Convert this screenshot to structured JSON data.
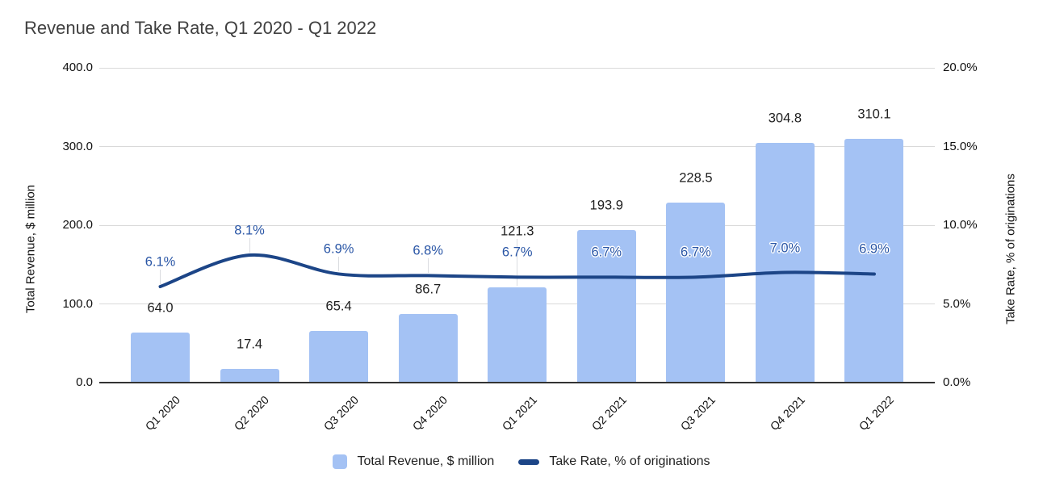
{
  "title": "Revenue and Take Rate, Q1 2020 - Q1 2022",
  "colors": {
    "bar": "#a4c2f4",
    "line": "#1c4587",
    "revenue_label": "#1f1f1f",
    "take_rate_label": "#2a56a6",
    "gridline": "#d9d9d9",
    "axis_line": "#333333",
    "title": "#404040"
  },
  "chart_data": {
    "type": "combo",
    "title": "Revenue and Take Rate, Q1 2020 - Q1 2022",
    "categories": [
      "Q1 2020",
      "Q2 2020",
      "Q3 2020",
      "Q4 2020",
      "Q1 2021",
      "Q2 2021",
      "Q3 2021",
      "Q4 2021",
      "Q1 2022"
    ],
    "series": [
      {
        "name": "Total Revenue, $ million",
        "type": "bar",
        "axis": "left",
        "color": "#a4c2f4",
        "values": [
          64.0,
          17.4,
          65.4,
          86.7,
          121.3,
          193.9,
          228.5,
          304.8,
          310.1
        ],
        "labels": [
          "64.0",
          "17.4",
          "65.4",
          "86.7",
          "121.3",
          "193.9",
          "228.5",
          "304.8",
          "310.1"
        ]
      },
      {
        "name": "Take Rate, % of originations",
        "type": "line",
        "axis": "right",
        "color": "#1c4587",
        "values": [
          6.1,
          8.1,
          6.9,
          6.8,
          6.7,
          6.7,
          6.7,
          7.0,
          6.9
        ],
        "labels": [
          "6.1%",
          "8.1%",
          "6.9%",
          "6.8%",
          "6.7%",
          "6.7%",
          "6.7%",
          "7.0%",
          "6.9%"
        ]
      }
    ],
    "axes": {
      "left": {
        "title": "Total Revenue, $ million",
        "min": 0,
        "max": 400,
        "ticks": [
          "400.0",
          "300.0",
          "200.0",
          "100.0",
          "0.0"
        ],
        "tick_values": [
          400,
          300,
          200,
          100,
          0
        ]
      },
      "right": {
        "title": "Take Rate, % of originations",
        "min": 0,
        "max": 20,
        "ticks": [
          "20.0%",
          "15.0%",
          "10.0%",
          "5.0%",
          "0.0%"
        ],
        "tick_values": [
          20,
          15,
          10,
          5,
          0
        ]
      }
    },
    "legend_position": "bottom",
    "grid": "horizontal"
  }
}
